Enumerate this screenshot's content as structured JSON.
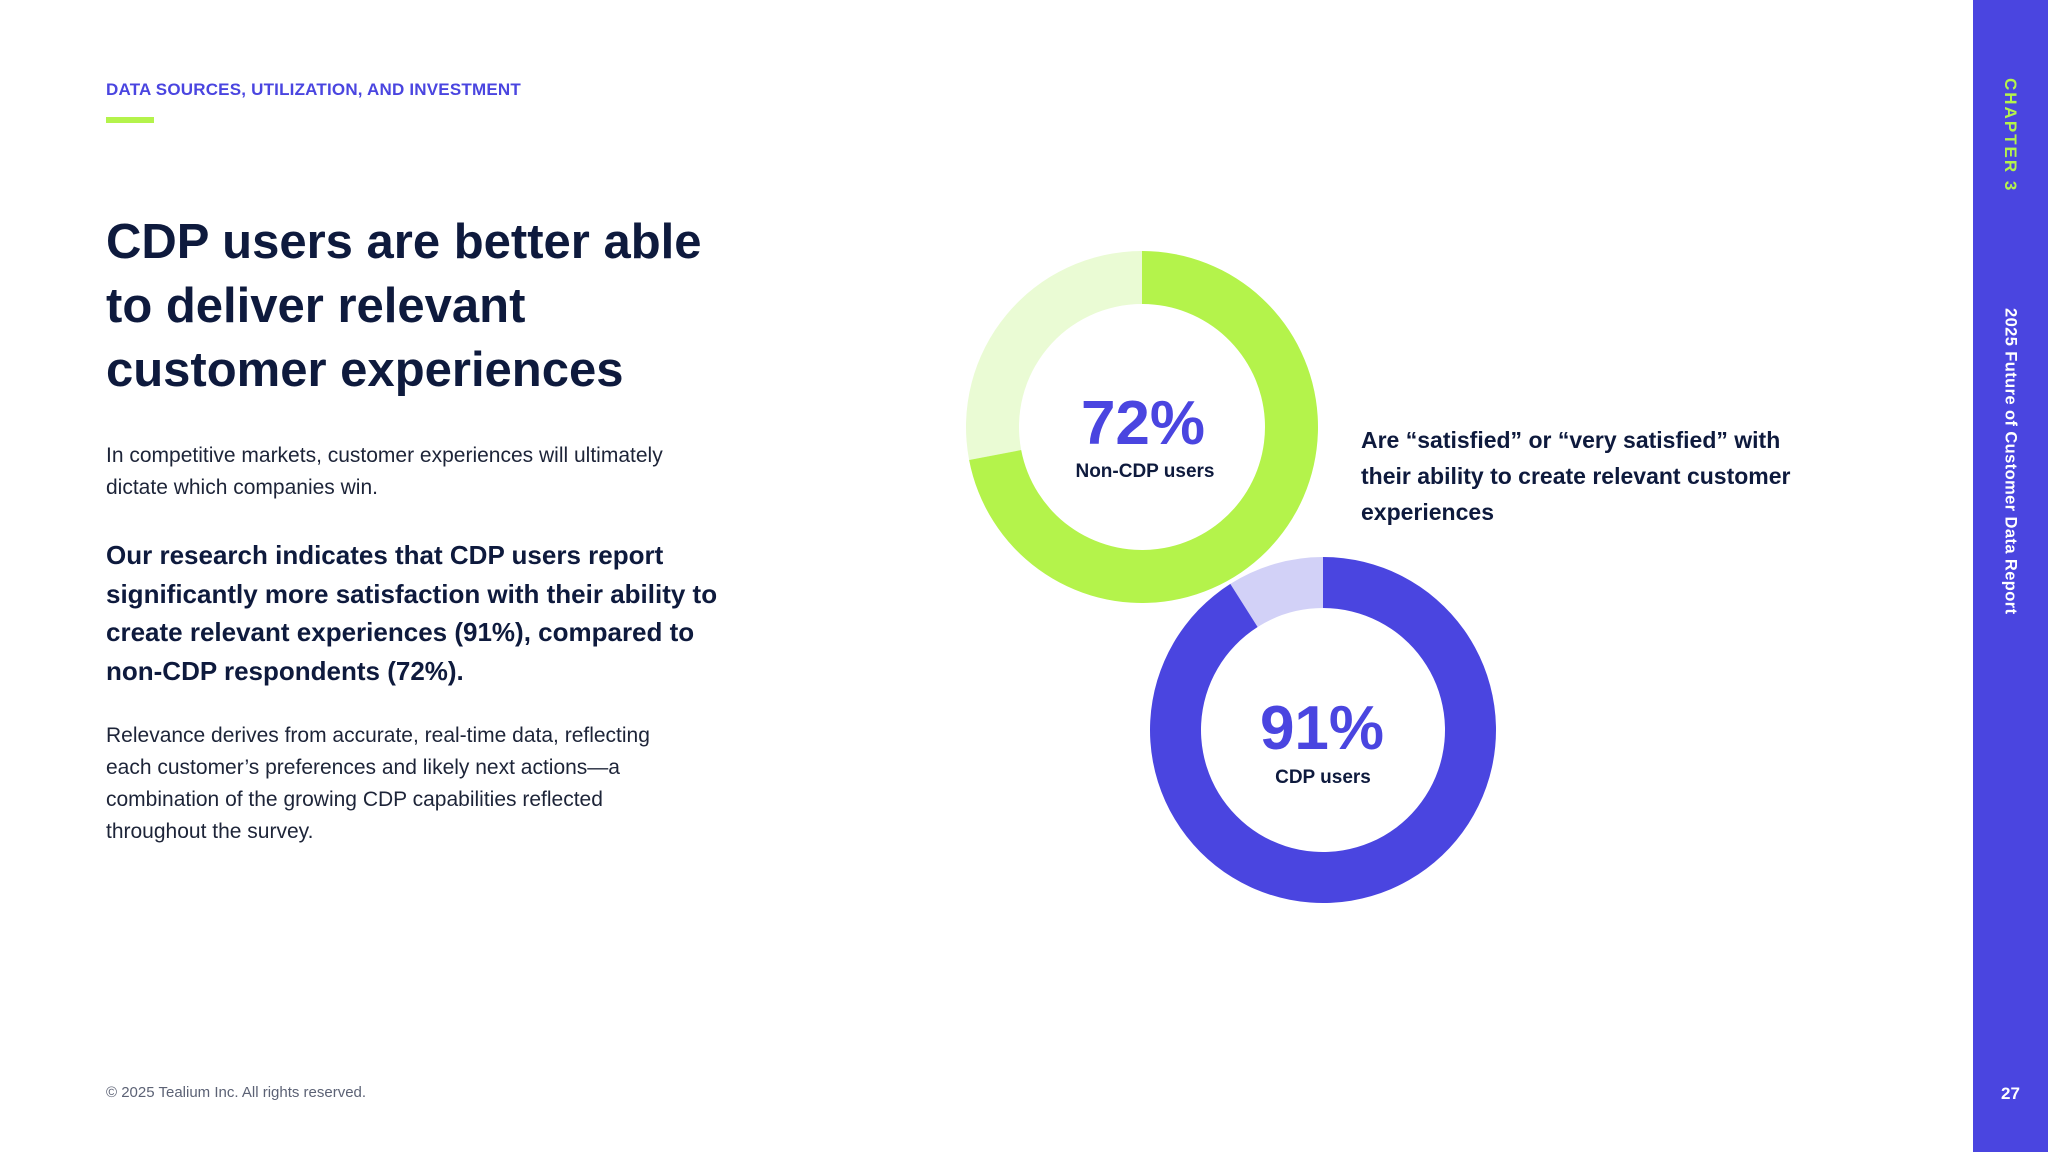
{
  "header": {
    "eyebrow": "DATA SOURCES, UTILIZATION, AND INVESTMENT"
  },
  "headline": "CDP users are better able to deliver relevant customer experiences",
  "body": {
    "intro": "In competitive markets, customer experiences will ultimately dictate which companies win.",
    "lead": "Our research indicates that CDP users report significantly more satisfaction with their ability to create relevant experiences (91%), compared to non-CDP respondents (72%).",
    "detail": "Relevance derives from accurate, real-time data, reflecting each customer’s preferences and likely next actions—a combination of the growing CDP capabilities reflected throughout the survey."
  },
  "footer": {
    "copyright": "© 2025 Tealium Inc. All rights reserved."
  },
  "sidebar": {
    "chapter": "CHAPTER 3",
    "report_title": "2025 Future of Customer Data Report",
    "page_number": "27"
  },
  "chart_annotation": "Are “satisfied” or “very satisfied” with their ability to create relevant customer experiences",
  "chart_data": [
    {
      "type": "pie",
      "variant": "donut",
      "title": "Non-CDP users",
      "value": 72,
      "remainder": 28,
      "value_label": "72%",
      "category_label": "Non-CDP users",
      "colors": {
        "value": "#b4f34b",
        "remainder": "#eafbd4",
        "label": "#4a45e0"
      }
    },
    {
      "type": "pie",
      "variant": "donut",
      "title": "CDP users",
      "value": 91,
      "remainder": 9,
      "value_label": "91%",
      "category_label": "CDP users",
      "colors": {
        "value": "#4a45e0",
        "remainder": "#d2d1f7",
        "label": "#4a45e0"
      }
    }
  ],
  "colors": {
    "accent_purple": "#4a45e0",
    "accent_green": "#b4f34b",
    "text_dark": "#0e1a3d"
  }
}
